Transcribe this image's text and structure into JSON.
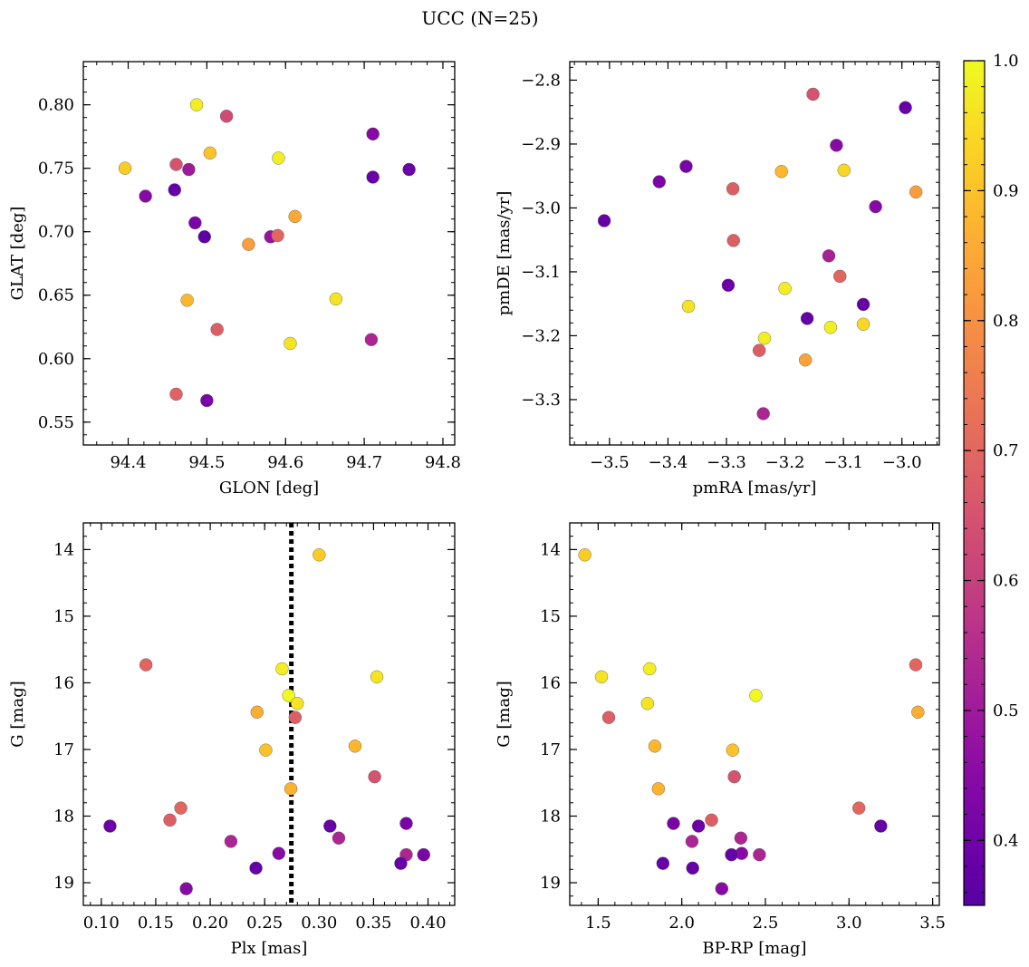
{
  "title": "UCC (N=25)",
  "colorbar": {
    "ticks": [
      0.4,
      0.5,
      0.6,
      0.7,
      0.8,
      0.9,
      1.0
    ],
    "tick_labels": [
      "0.4",
      "0.5",
      "0.6",
      "0.7",
      "0.8",
      "0.9",
      "1.0"
    ],
    "range": [
      0.35,
      1.0
    ],
    "colormap": "plasma"
  },
  "chart_data": [
    {
      "id": "glon-glat",
      "type": "scatter",
      "xlabel": "GLON [deg]",
      "ylabel": "GLAT [deg]",
      "xlim": [
        94.343,
        94.815
      ],
      "ylim": [
        0.532,
        0.834
      ],
      "xticks": [
        94.4,
        94.5,
        94.6,
        94.7,
        94.8
      ],
      "xtick_labels": [
        "94.4",
        "94.5",
        "94.6",
        "94.7",
        "94.8"
      ],
      "yticks": [
        0.55,
        0.6,
        0.65,
        0.7,
        0.75,
        0.8
      ],
      "ytick_labels": [
        "0.55",
        "0.60",
        "0.65",
        "0.70",
        "0.75",
        "0.80"
      ],
      "points": [
        {
          "x": 94.487,
          "y": 0.8,
          "c": 0.98
        },
        {
          "x": 94.525,
          "y": 0.791,
          "c": 0.63
        },
        {
          "x": 94.396,
          "y": 0.75,
          "c": 0.92
        },
        {
          "x": 94.461,
          "y": 0.753,
          "c": 0.65
        },
        {
          "x": 94.477,
          "y": 0.749,
          "c": 0.5
        },
        {
          "x": 94.504,
          "y": 0.762,
          "c": 0.9
        },
        {
          "x": 94.591,
          "y": 0.758,
          "c": 0.98
        },
        {
          "x": 94.711,
          "y": 0.777,
          "c": 0.45
        },
        {
          "x": 94.757,
          "y": 0.749,
          "c": 0.39
        },
        {
          "x": 94.711,
          "y": 0.743,
          "c": 0.39
        },
        {
          "x": 94.422,
          "y": 0.728,
          "c": 0.45
        },
        {
          "x": 94.459,
          "y": 0.733,
          "c": 0.38
        },
        {
          "x": 94.485,
          "y": 0.707,
          "c": 0.42
        },
        {
          "x": 94.497,
          "y": 0.696,
          "c": 0.37
        },
        {
          "x": 94.612,
          "y": 0.712,
          "c": 0.85
        },
        {
          "x": 94.581,
          "y": 0.696,
          "c": 0.48
        },
        {
          "x": 94.59,
          "y": 0.697,
          "c": 0.7
        },
        {
          "x": 94.553,
          "y": 0.69,
          "c": 0.83
        },
        {
          "x": 94.475,
          "y": 0.646,
          "c": 0.88
        },
        {
          "x": 94.664,
          "y": 0.647,
          "c": 0.96
        },
        {
          "x": 94.513,
          "y": 0.623,
          "c": 0.68
        },
        {
          "x": 94.606,
          "y": 0.612,
          "c": 0.96
        },
        {
          "x": 94.709,
          "y": 0.615,
          "c": 0.53
        },
        {
          "x": 94.461,
          "y": 0.572,
          "c": 0.69
        },
        {
          "x": 94.5,
          "y": 0.567,
          "c": 0.42
        }
      ]
    },
    {
      "id": "pmra-pmde",
      "type": "scatter",
      "xlabel": "pmRA [mas/yr]",
      "ylabel": "pmDE [mas/yr]",
      "xlim": [
        -3.568,
        -2.936
      ],
      "ylim": [
        -3.371,
        -2.771
      ],
      "xticks": [
        -3.5,
        -3.4,
        -3.3,
        -3.2,
        -3.1,
        -3.0
      ],
      "xtick_labels": [
        "−3.5",
        "−3.4",
        "−3.3",
        "−3.2",
        "−3.1",
        "−3.0"
      ],
      "yticks": [
        -3.3,
        -3.2,
        -3.1,
        -3.0,
        -2.9,
        -2.8
      ],
      "ytick_labels": [
        "−3.3",
        "−3.2",
        "−3.1",
        "−3.0",
        "−2.9",
        "−2.8"
      ],
      "points": [
        {
          "x": -3.152,
          "y": -2.822,
          "c": 0.65
        },
        {
          "x": -2.994,
          "y": -2.843,
          "c": 0.38
        },
        {
          "x": -3.112,
          "y": -2.902,
          "c": 0.45
        },
        {
          "x": -3.369,
          "y": -2.935,
          "c": 0.42
        },
        {
          "x": -3.415,
          "y": -2.959,
          "c": 0.42
        },
        {
          "x": -3.206,
          "y": -2.943,
          "c": 0.88
        },
        {
          "x": -3.099,
          "y": -2.941,
          "c": 0.94
        },
        {
          "x": -3.289,
          "y": -2.97,
          "c": 0.68
        },
        {
          "x": -3.045,
          "y": -2.998,
          "c": 0.45
        },
        {
          "x": -2.976,
          "y": -2.975,
          "c": 0.83
        },
        {
          "x": -3.509,
          "y": -3.02,
          "c": 0.38
        },
        {
          "x": -3.288,
          "y": -3.051,
          "c": 0.68
        },
        {
          "x": -3.125,
          "y": -3.075,
          "c": 0.52
        },
        {
          "x": -3.106,
          "y": -3.107,
          "c": 0.7
        },
        {
          "x": -3.297,
          "y": -3.121,
          "c": 0.39
        },
        {
          "x": -3.2,
          "y": -3.126,
          "c": 0.98
        },
        {
          "x": -3.365,
          "y": -3.154,
          "c": 0.96
        },
        {
          "x": -3.066,
          "y": -3.151,
          "c": 0.38
        },
        {
          "x": -3.162,
          "y": -3.173,
          "c": 0.38
        },
        {
          "x": -3.122,
          "y": -3.187,
          "c": 0.98
        },
        {
          "x": -3.066,
          "y": -3.182,
          "c": 0.94
        },
        {
          "x": -3.235,
          "y": -3.204,
          "c": 0.98
        },
        {
          "x": -3.244,
          "y": -3.223,
          "c": 0.68
        },
        {
          "x": -3.165,
          "y": -3.238,
          "c": 0.84
        },
        {
          "x": -3.237,
          "y": -3.322,
          "c": 0.53
        }
      ]
    },
    {
      "id": "plx-g",
      "type": "scatter",
      "xlabel": "Plx [mas]",
      "ylabel": "G [mag]",
      "xlim": [
        0.0835,
        0.4245
      ],
      "ylim": [
        19.34,
        13.6
      ],
      "y_inverted": true,
      "xticks": [
        0.1,
        0.15,
        0.2,
        0.25,
        0.3,
        0.35,
        0.4
      ],
      "xtick_labels": [
        "0.10",
        "0.15",
        "0.20",
        "0.25",
        "0.30",
        "0.35",
        "0.40"
      ],
      "yticks": [
        14,
        15,
        16,
        17,
        18,
        19
      ],
      "ytick_labels": [
        "14",
        "15",
        "16",
        "17",
        "18",
        "19"
      ],
      "vline": 0.2745,
      "points": [
        {
          "x": 0.3,
          "y": 14.08,
          "c": 0.92
        },
        {
          "x": 0.141,
          "y": 15.73,
          "c": 0.7
        },
        {
          "x": 0.266,
          "y": 15.79,
          "c": 0.98
        },
        {
          "x": 0.353,
          "y": 15.91,
          "c": 0.96
        },
        {
          "x": 0.272,
          "y": 16.19,
          "c": 1.0
        },
        {
          "x": 0.28,
          "y": 16.31,
          "c": 0.96
        },
        {
          "x": 0.243,
          "y": 16.44,
          "c": 0.86
        },
        {
          "x": 0.278,
          "y": 16.52,
          "c": 0.68
        },
        {
          "x": 0.251,
          "y": 17.01,
          "c": 0.9
        },
        {
          "x": 0.333,
          "y": 16.95,
          "c": 0.88
        },
        {
          "x": 0.351,
          "y": 17.41,
          "c": 0.65
        },
        {
          "x": 0.274,
          "y": 17.59,
          "c": 0.87
        },
        {
          "x": 0.173,
          "y": 17.88,
          "c": 0.7
        },
        {
          "x": 0.163,
          "y": 18.06,
          "c": 0.68
        },
        {
          "x": 0.108,
          "y": 18.15,
          "c": 0.39
        },
        {
          "x": 0.31,
          "y": 18.15,
          "c": 0.38
        },
        {
          "x": 0.38,
          "y": 18.11,
          "c": 0.42
        },
        {
          "x": 0.219,
          "y": 18.38,
          "c": 0.53
        },
        {
          "x": 0.318,
          "y": 18.33,
          "c": 0.53
        },
        {
          "x": 0.263,
          "y": 18.56,
          "c": 0.45
        },
        {
          "x": 0.38,
          "y": 18.58,
          "c": 0.53
        },
        {
          "x": 0.396,
          "y": 18.58,
          "c": 0.42
        },
        {
          "x": 0.242,
          "y": 18.78,
          "c": 0.38
        },
        {
          "x": 0.375,
          "y": 18.71,
          "c": 0.38
        },
        {
          "x": 0.178,
          "y": 19.09,
          "c": 0.45
        }
      ]
    },
    {
      "id": "bprp-g",
      "type": "scatter",
      "xlabel": "BP-RP [mag]",
      "ylabel": "G [mag]",
      "xlim": [
        1.33,
        3.54
      ],
      "ylim": [
        19.34,
        13.6
      ],
      "y_inverted": true,
      "xticks": [
        1.5,
        2.0,
        2.5,
        3.0,
        3.5
      ],
      "xtick_labels": [
        "1.5",
        "2.0",
        "2.5",
        "3.0",
        "3.5"
      ],
      "yticks": [
        14,
        15,
        16,
        17,
        18,
        19
      ],
      "ytick_labels": [
        "14",
        "15",
        "16",
        "17",
        "18",
        "19"
      ],
      "points": [
        {
          "x": 1.42,
          "y": 14.08,
          "c": 0.92
        },
        {
          "x": 1.808,
          "y": 15.79,
          "c": 0.98
        },
        {
          "x": 1.52,
          "y": 15.91,
          "c": 0.96
        },
        {
          "x": 2.443,
          "y": 16.19,
          "c": 1.0
        },
        {
          "x": 1.795,
          "y": 16.31,
          "c": 0.96
        },
        {
          "x": 1.563,
          "y": 16.52,
          "c": 0.68
        },
        {
          "x": 3.399,
          "y": 15.73,
          "c": 0.7
        },
        {
          "x": 3.412,
          "y": 16.44,
          "c": 0.86
        },
        {
          "x": 1.839,
          "y": 16.95,
          "c": 0.88
        },
        {
          "x": 2.304,
          "y": 17.01,
          "c": 0.9
        },
        {
          "x": 2.314,
          "y": 17.41,
          "c": 0.65
        },
        {
          "x": 1.86,
          "y": 17.59,
          "c": 0.87
        },
        {
          "x": 3.059,
          "y": 17.88,
          "c": 0.7
        },
        {
          "x": 2.178,
          "y": 18.06,
          "c": 0.68
        },
        {
          "x": 1.95,
          "y": 18.11,
          "c": 0.42
        },
        {
          "x": 2.1,
          "y": 18.15,
          "c": 0.39
        },
        {
          "x": 3.19,
          "y": 18.15,
          "c": 0.38
        },
        {
          "x": 2.353,
          "y": 18.33,
          "c": 0.53
        },
        {
          "x": 2.061,
          "y": 18.38,
          "c": 0.53
        },
        {
          "x": 2.358,
          "y": 18.56,
          "c": 0.45
        },
        {
          "x": 2.297,
          "y": 18.58,
          "c": 0.38
        },
        {
          "x": 2.464,
          "y": 18.58,
          "c": 0.53
        },
        {
          "x": 1.887,
          "y": 18.71,
          "c": 0.38
        },
        {
          "x": 2.065,
          "y": 18.78,
          "c": 0.38
        },
        {
          "x": 2.239,
          "y": 19.09,
          "c": 0.45
        }
      ]
    }
  ]
}
